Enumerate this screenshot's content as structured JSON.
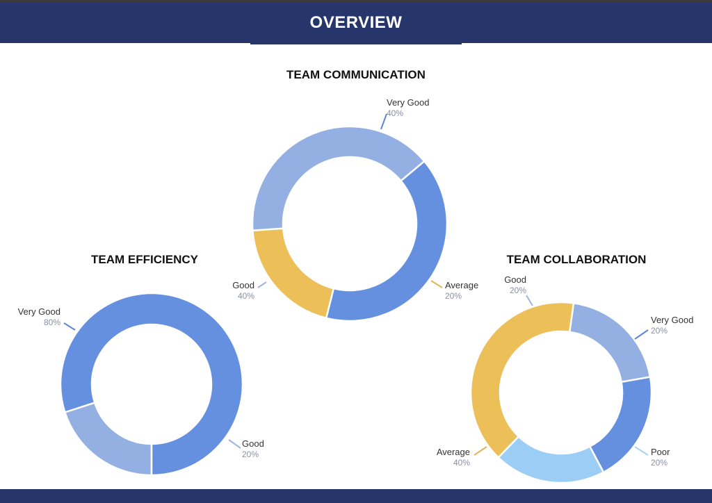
{
  "header": {
    "title": "OVERVIEW"
  },
  "colors": {
    "header_bg": "#26366b",
    "very_good": "#6590df",
    "good": "#94b0e2",
    "average": "#edbf59",
    "poor": "#9ccdf5",
    "leader_very_good": "#5e86d6",
    "leader_good": "#9db3de",
    "leader_average": "#e2b457",
    "leader_poor": "#a9d2f3"
  },
  "chart_data": [
    {
      "type": "pie",
      "title": "TEAM COMMUNICATION",
      "slices": [
        {
          "label": "Very Good",
          "value": 40,
          "pct_label": "40%",
          "color": "#6590df"
        },
        {
          "label": "Average",
          "value": 20,
          "pct_label": "20%",
          "color": "#edbf59"
        },
        {
          "label": "Good",
          "value": 40,
          "pct_label": "40%",
          "color": "#94b0e2"
        }
      ]
    },
    {
      "type": "pie",
      "title": "TEAM EFFICIENCY",
      "slices": [
        {
          "label": "Good",
          "value": 20,
          "pct_label": "20%",
          "color": "#94b0e2"
        },
        {
          "label": "Very Good",
          "value": 80,
          "pct_label": "80%",
          "color": "#6590df"
        }
      ]
    },
    {
      "type": "pie",
      "title": "TEAM COLLABORATION",
      "slices": [
        {
          "label": "Very Good",
          "value": 20,
          "pct_label": "20%",
          "color": "#6590df"
        },
        {
          "label": "Poor",
          "value": 20,
          "pct_label": "20%",
          "color": "#9ccdf5"
        },
        {
          "label": "Average",
          "value": 40,
          "pct_label": "40%",
          "color": "#edbf59"
        },
        {
          "label": "Good",
          "value": 20,
          "pct_label": "20%",
          "color": "#94b0e2"
        }
      ]
    }
  ]
}
